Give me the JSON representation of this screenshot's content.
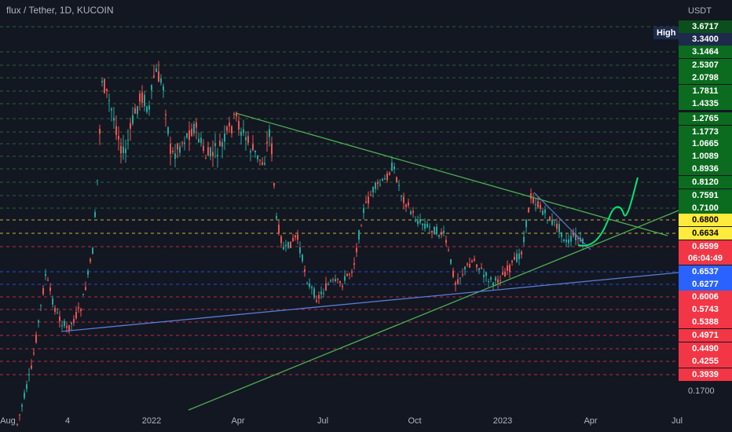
{
  "chart_data": {
    "type": "candlestick",
    "title": "flux / Tether, 1D, KUCOIN",
    "ylabel": "USDT",
    "xlabel": "",
    "high_label": "High",
    "x_ticks": [
      "Aug",
      "4",
      "2022",
      "Apr",
      "Jul",
      "Oct",
      "2023",
      "Apr",
      "Jul"
    ],
    "price_tags": [
      {
        "value": "3.6717",
        "bg": "#0b4f1c",
        "fg": "#ffffff"
      },
      {
        "value": "3.3400",
        "bg": "#1e2a4a",
        "fg": "#ffffff"
      },
      {
        "value": "3.1464",
        "bg": "#0b6b1f",
        "fg": "#ffffff"
      },
      {
        "value": "2.5307",
        "bg": "#0b6b1f",
        "fg": "#ffffff"
      },
      {
        "value": "2.0798",
        "bg": "#0b6b1f",
        "fg": "#ffffff"
      },
      {
        "value": "1.7811",
        "bg": "#0b6b1f",
        "fg": "#ffffff"
      },
      {
        "value": "1.4335",
        "bg": "#0b6b1f",
        "fg": "#ffffff"
      },
      {
        "value": "1.2765",
        "bg": "#0b6b1f",
        "fg": "#ffffff"
      },
      {
        "value": "1.1773",
        "bg": "#0b6b1f",
        "fg": "#ffffff"
      },
      {
        "value": "1.0665",
        "bg": "#0b6b1f",
        "fg": "#ffffff"
      },
      {
        "value": "1.0089",
        "bg": "#0b6b1f",
        "fg": "#ffffff"
      },
      {
        "value": "0.8936",
        "bg": "#0b6b1f",
        "fg": "#ffffff"
      },
      {
        "value": "0.8120",
        "bg": "#0b6b1f",
        "fg": "#ffffff"
      },
      {
        "value": "0.7591",
        "bg": "#0b6b1f",
        "fg": "#ffffff"
      },
      {
        "value": "0.7100",
        "bg": "#0b6b1f",
        "fg": "#ffffff"
      },
      {
        "value": "0.6800",
        "bg": "#ffeb3b",
        "fg": "#000000"
      },
      {
        "value": "0.6634",
        "bg": "#ffeb3b",
        "fg": "#000000"
      },
      {
        "value": "0.6599",
        "bg": "#f23645",
        "fg": "#ffffff"
      },
      {
        "value": "06:04:49",
        "bg": "#f23645",
        "fg": "#ffffff"
      },
      {
        "value": "0.6537",
        "bg": "#2962ff",
        "fg": "#ffffff"
      },
      {
        "value": "0.6277",
        "bg": "#2962ff",
        "fg": "#ffffff"
      },
      {
        "value": "0.6006",
        "bg": "#f23645",
        "fg": "#ffffff"
      },
      {
        "value": "0.5743",
        "bg": "#f23645",
        "fg": "#ffffff"
      },
      {
        "value": "0.5388",
        "bg": "#f23645",
        "fg": "#ffffff"
      },
      {
        "value": "0.4971",
        "bg": "#f23645",
        "fg": "#ffffff"
      },
      {
        "value": "0.4490",
        "bg": "#f23645",
        "fg": "#ffffff"
      },
      {
        "value": "0.4255",
        "bg": "#f23645",
        "fg": "#ffffff"
      },
      {
        "value": "0.3939",
        "bg": "#f23645",
        "fg": "#ffffff"
      }
    ],
    "plain_price_tick": "0.1700",
    "colors": {
      "up": "#26a69a",
      "down": "#ef5350",
      "trend_green": "#4caf50",
      "trend_blue": "#5b7bd6",
      "projection": "#00e676"
    }
  }
}
